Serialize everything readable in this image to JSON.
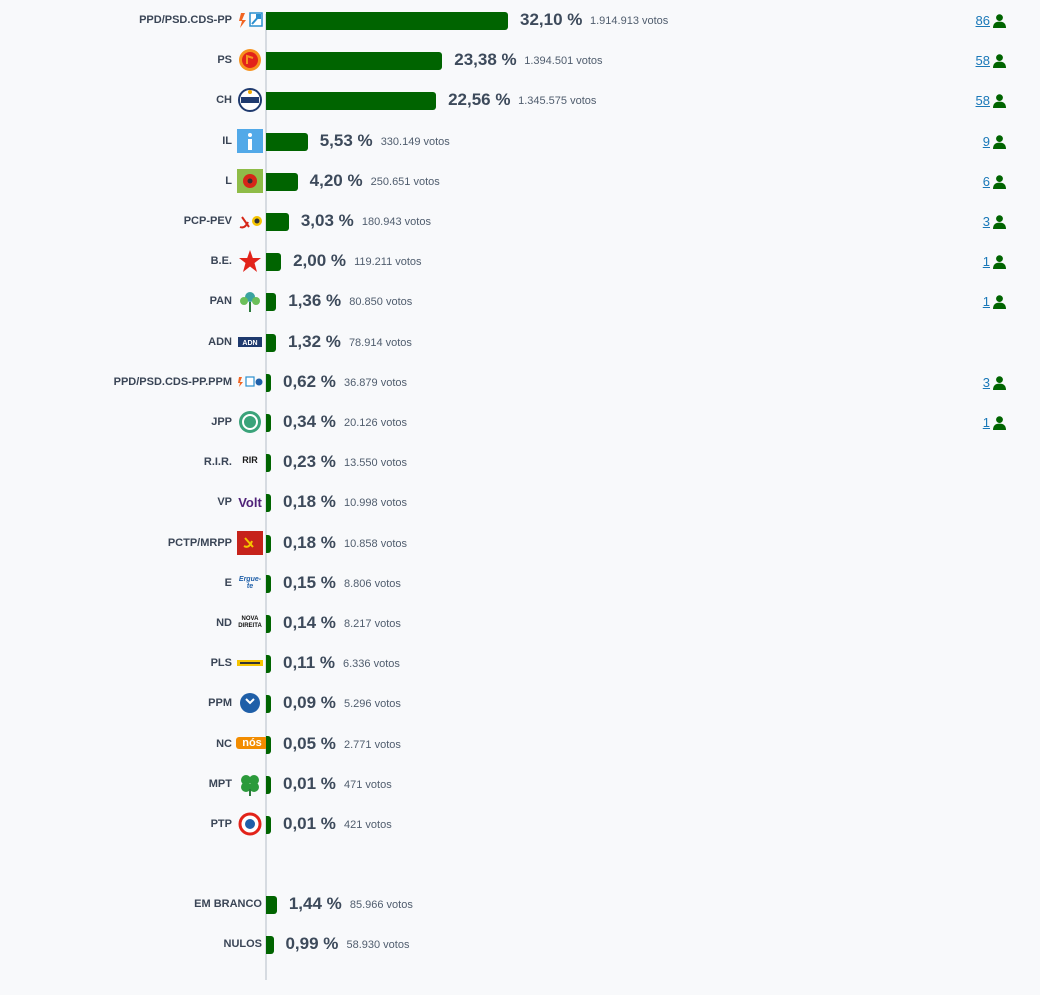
{
  "colors": {
    "bar": "#006400",
    "person_icon": "#006400",
    "seat_link": "#1a78b8"
  },
  "chart_data": {
    "type": "bar",
    "orientation": "horizontal",
    "categories": [
      "PPD/PSD.CDS-PP",
      "PS",
      "CH",
      "IL",
      "L",
      "PCP-PEV",
      "B.E.",
      "PAN",
      "ADN",
      "PPD/PSD.CDS-PP.PPM",
      "JPP",
      "R.I.R.",
      "VP",
      "PCTP/MRPP",
      "E",
      "ND",
      "PLS",
      "PPM",
      "NC",
      "MPT",
      "PTP",
      "EM BRANCO",
      "NULOS"
    ],
    "values": [
      32.1,
      23.38,
      22.56,
      5.53,
      4.2,
      3.03,
      2.0,
      1.36,
      1.32,
      0.62,
      0.34,
      0.23,
      0.18,
      0.18,
      0.15,
      0.14,
      0.11,
      0.09,
      0.05,
      0.01,
      0.01,
      1.44,
      0.99
    ],
    "rows": [
      {
        "name": "PPD/PSD.CDS-PP",
        "pct": 32.1,
        "pct_label": "32,10 %",
        "votes_label": "1.914.913 votos",
        "seats": "86",
        "logo": "ppd-cds-logo"
      },
      {
        "name": "PS",
        "pct": 23.38,
        "pct_label": "23,38 %",
        "votes_label": "1.394.501 votos",
        "seats": "58",
        "logo": "ps-logo"
      },
      {
        "name": "CH",
        "pct": 22.56,
        "pct_label": "22,56 %",
        "votes_label": "1.345.575 votos",
        "seats": "58",
        "logo": "chega-logo"
      },
      {
        "name": "IL",
        "pct": 5.53,
        "pct_label": "5,53 %",
        "votes_label": "330.149 votos",
        "seats": "9",
        "logo": "il-logo"
      },
      {
        "name": "L",
        "pct": 4.2,
        "pct_label": "4,20 %",
        "votes_label": "250.651 votos",
        "seats": "6",
        "logo": "livre-logo"
      },
      {
        "name": "PCP-PEV",
        "pct": 3.03,
        "pct_label": "3,03 %",
        "votes_label": "180.943 votos",
        "seats": "3",
        "logo": "pcp-pev-logo"
      },
      {
        "name": "B.E.",
        "pct": 2.0,
        "pct_label": "2,00 %",
        "votes_label": "119.211 votos",
        "seats": "1",
        "logo": "be-logo"
      },
      {
        "name": "PAN",
        "pct": 1.36,
        "pct_label": "1,36 %",
        "votes_label": "80.850 votos",
        "seats": "1",
        "logo": "pan-logo"
      },
      {
        "name": "ADN",
        "pct": 1.32,
        "pct_label": "1,32 %",
        "votes_label": "78.914 votos",
        "seats": "",
        "logo": "adn-logo"
      },
      {
        "name": "PPD/PSD.CDS-PP.PPM",
        "pct": 0.62,
        "pct_label": "0,62 %",
        "votes_label": "36.879 votos",
        "seats": "3",
        "logo": "ppd-cds-ppm-logo"
      },
      {
        "name": "JPP",
        "pct": 0.34,
        "pct_label": "0,34 %",
        "votes_label": "20.126 votos",
        "seats": "1",
        "logo": "jpp-logo"
      },
      {
        "name": "R.I.R.",
        "pct": 0.23,
        "pct_label": "0,23 %",
        "votes_label": "13.550 votos",
        "seats": "",
        "logo": "rir-logo",
        "logo_text": "RIR"
      },
      {
        "name": "VP",
        "pct": 0.18,
        "pct_label": "0,18 %",
        "votes_label": "10.998 votos",
        "seats": "",
        "logo": "volt-logo",
        "logo_text": "Volt"
      },
      {
        "name": "PCTP/MRPP",
        "pct": 0.18,
        "pct_label": "0,18 %",
        "votes_label": "10.858 votos",
        "seats": "",
        "logo": "pctp-logo"
      },
      {
        "name": "E",
        "pct": 0.15,
        "pct_label": "0,15 %",
        "votes_label": "8.806 votos",
        "seats": "",
        "logo": "ergue-te-logo",
        "logo_text": "Ergue-te"
      },
      {
        "name": "ND",
        "pct": 0.14,
        "pct_label": "0,14 %",
        "votes_label": "8.217 votos",
        "seats": "",
        "logo": "nova-direita-logo",
        "logo_text": "NOVA DIREITA"
      },
      {
        "name": "PLS",
        "pct": 0.11,
        "pct_label": "0,11 %",
        "votes_label": "6.336 votos",
        "seats": "",
        "logo": "pls-logo"
      },
      {
        "name": "PPM",
        "pct": 0.09,
        "pct_label": "0,09 %",
        "votes_label": "5.296 votos",
        "seats": "",
        "logo": "ppm-logo"
      },
      {
        "name": "NC",
        "pct": 0.05,
        "pct_label": "0,05 %",
        "votes_label": "2.771 votos",
        "seats": "",
        "logo": "nos-cidadaos-logo",
        "logo_text": "nós"
      },
      {
        "name": "MPT",
        "pct": 0.01,
        "pct_label": "0,01 %",
        "votes_label": "471 votos",
        "seats": "",
        "logo": "mpt-logo"
      },
      {
        "name": "PTP",
        "pct": 0.01,
        "pct_label": "0,01 %",
        "votes_label": "421 votos",
        "seats": "",
        "logo": "ptp-logo"
      },
      {
        "name": "EM BRANCO",
        "pct": 1.44,
        "pct_label": "1,44 %",
        "votes_label": "85.966 votos",
        "seats": "",
        "logo": ""
      },
      {
        "name": "NULOS",
        "pct": 0.99,
        "pct_label": "0,99 %",
        "votes_label": "58.930 votos",
        "seats": "",
        "logo": ""
      }
    ],
    "xlim": [
      0,
      32.1
    ],
    "grid": false,
    "legend": "none"
  }
}
